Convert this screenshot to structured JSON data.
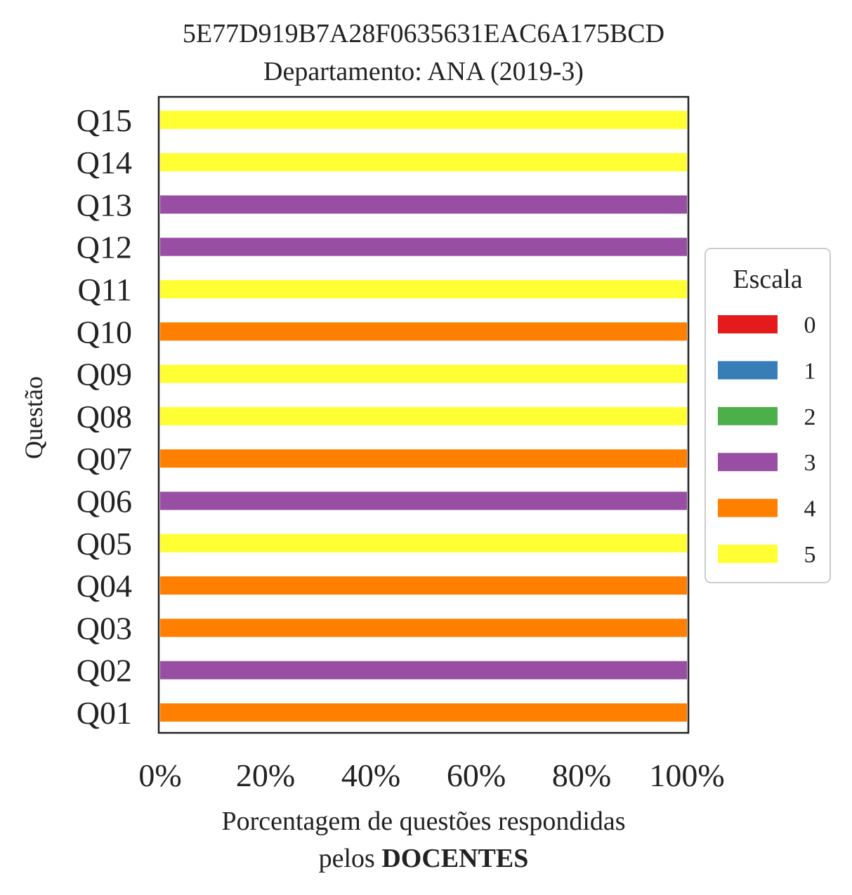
{
  "chart_data": {
    "type": "bar",
    "orientation": "horizontal",
    "stacked": true,
    "title": "5E77D919B7A28F0635631EAC6A175BCD",
    "subtitle": "Departamento: ANA (2019-3)",
    "xlabel_line1": "Porcentagem de questões respondidas",
    "xlabel_line2_prefix": "pelos ",
    "xlabel_line2_bold": "DOCENTES",
    "ylabel": "Questão",
    "xlim": [
      0,
      100
    ],
    "x_ticks": [
      "0%",
      "20%",
      "40%",
      "60%",
      "80%",
      "100%"
    ],
    "x_tick_values": [
      0,
      20,
      40,
      60,
      80,
      100
    ],
    "grid": false,
    "legend": {
      "title": "Escala",
      "placement": "right",
      "entries": [
        "0",
        "1",
        "2",
        "3",
        "4",
        "5"
      ],
      "colors": [
        "#e41a1c",
        "#377eb8",
        "#4daf4a",
        "#984ea3",
        "#ff7f00",
        "#ffff33"
      ]
    },
    "categories": [
      "Q01",
      "Q02",
      "Q03",
      "Q04",
      "Q05",
      "Q06",
      "Q07",
      "Q08",
      "Q09",
      "Q10",
      "Q11",
      "Q12",
      "Q13",
      "Q14",
      "Q15"
    ],
    "series": [
      {
        "name": "0",
        "color": "#e41a1c",
        "values": [
          0,
          0,
          0,
          0,
          0,
          0,
          0,
          0,
          0,
          0,
          0,
          0,
          0,
          0,
          0
        ]
      },
      {
        "name": "1",
        "color": "#377eb8",
        "values": [
          0,
          0,
          0,
          0,
          0,
          0,
          0,
          0,
          0,
          0,
          0,
          0,
          0,
          0,
          0
        ]
      },
      {
        "name": "2",
        "color": "#4daf4a",
        "values": [
          0,
          0,
          0,
          0,
          0,
          0,
          0,
          0,
          0,
          0,
          0,
          0,
          0,
          0,
          0
        ]
      },
      {
        "name": "3",
        "color": "#984ea3",
        "values": [
          0,
          100,
          0,
          0,
          0,
          100,
          0,
          0,
          0,
          0,
          0,
          100,
          100,
          0,
          0
        ]
      },
      {
        "name": "4",
        "color": "#ff7f00",
        "values": [
          100,
          0,
          100,
          100,
          0,
          0,
          100,
          0,
          0,
          100,
          0,
          0,
          0,
          0,
          0
        ]
      },
      {
        "name": "5",
        "color": "#ffff33",
        "values": [
          0,
          0,
          0,
          0,
          100,
          0,
          0,
          100,
          100,
          0,
          100,
          0,
          0,
          100,
          100
        ]
      }
    ]
  }
}
